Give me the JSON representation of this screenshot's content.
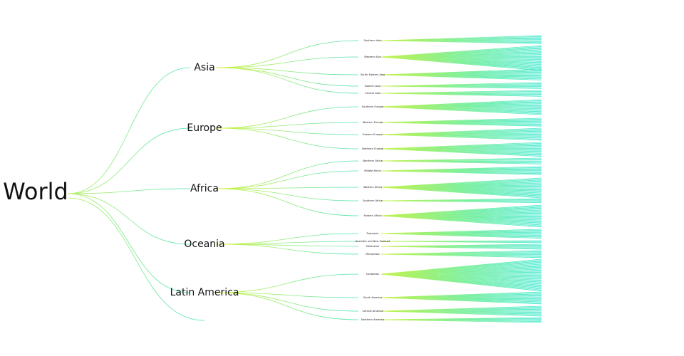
{
  "root": "World",
  "continents": [
    {
      "label": "Asia",
      "regions": [
        "Southern Asia",
        "Western Asia",
        "South-Eastern Asia",
        "Eastern Asia",
        "Central Asia"
      ]
    },
    {
      "label": "Europe",
      "regions": [
        "Southern Europe",
        "Western Europe",
        "Eastern Europe",
        "Northern Europe"
      ]
    },
    {
      "label": "Africa",
      "regions": [
        "Northern Africa",
        "Middle Africa",
        "Western Africa",
        "Southern Africa",
        "Eastern Africa"
      ]
    },
    {
      "label": "Oceania",
      "regions": [
        "Polynesia",
        "Australia and New Zealand",
        "Melanesia",
        "Micronesia"
      ]
    },
    {
      "label": "Latin America",
      "regions": [
        "Caribbean",
        "South America",
        "Central America",
        "Northern America"
      ]
    }
  ]
}
